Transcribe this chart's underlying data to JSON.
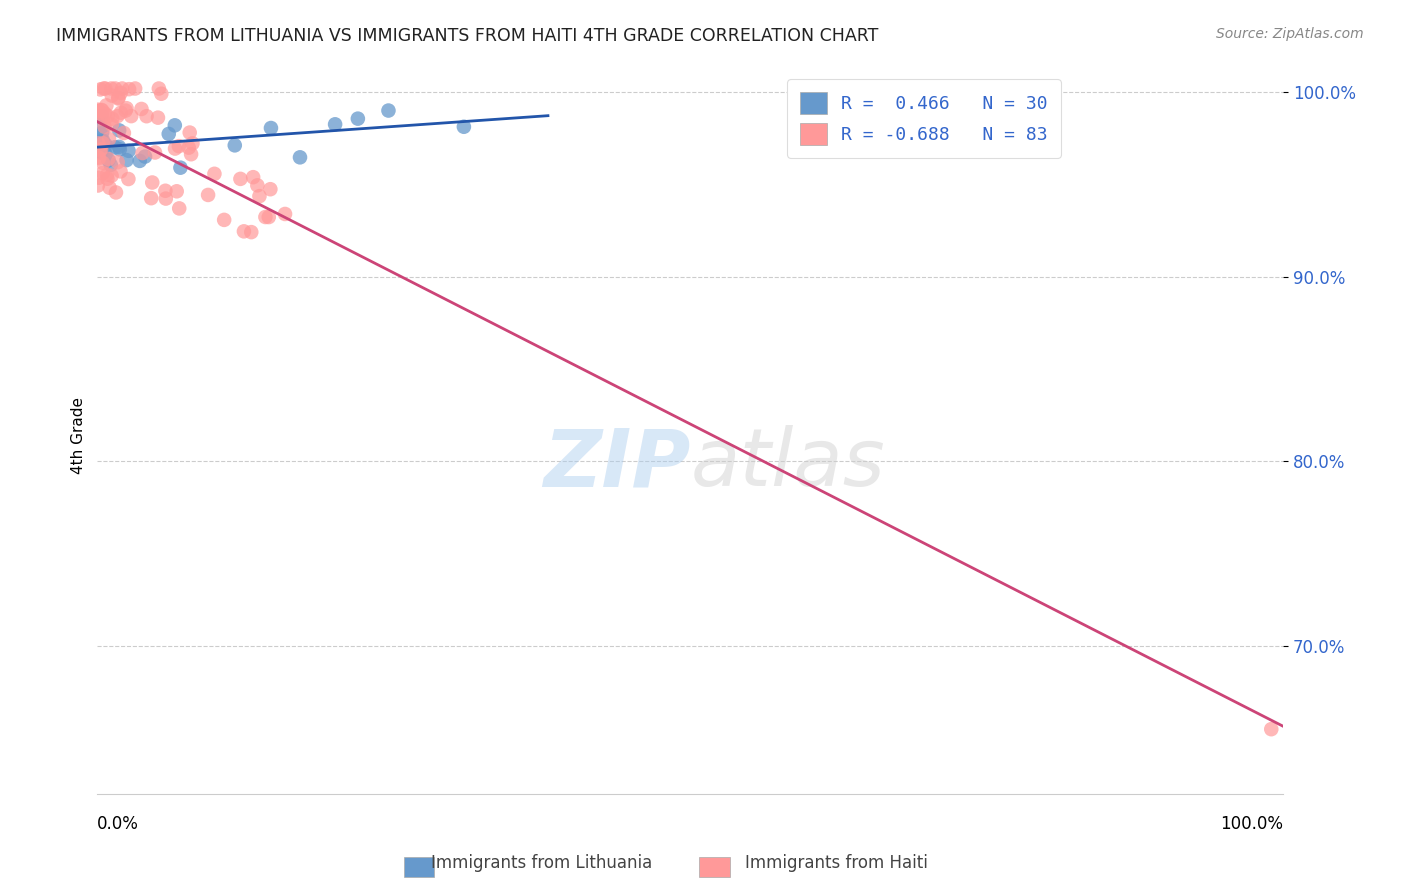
{
  "title": "IMMIGRANTS FROM LITHUANIA VS IMMIGRANTS FROM HAITI 4TH GRADE CORRELATION CHART",
  "source": "Source: ZipAtlas.com",
  "ylabel": "4th Grade",
  "xlim": [
    0.0,
    1.0
  ],
  "ylim": [
    0.62,
    1.008
  ],
  "yticks": [
    0.7,
    0.8,
    0.9,
    1.0
  ],
  "ytick_labels": [
    "70.0%",
    "80.0%",
    "90.0%",
    "100.0%"
  ],
  "blue_color": "#6699CC",
  "pink_color": "#FF9999",
  "blue_line_color": "#2255AA",
  "pink_line_color": "#CC4477",
  "legend_text_color": "#3366CC",
  "n_blue": 30,
  "n_pink": 83,
  "blue_R": 0.466,
  "pink_R": -0.688
}
